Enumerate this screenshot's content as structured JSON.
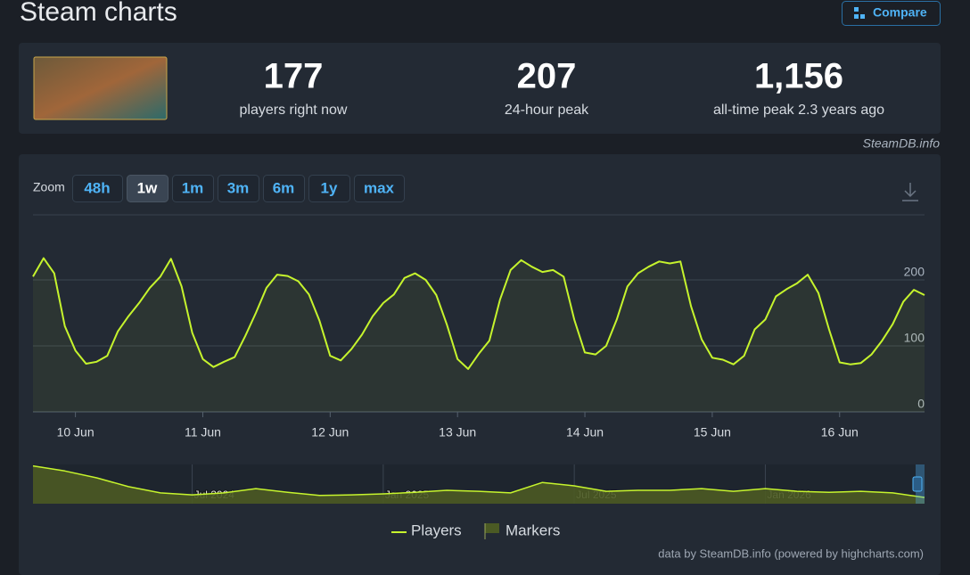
{
  "header": {
    "title": "Steam charts",
    "compare": "Compare"
  },
  "stats": [
    {
      "value": "177",
      "label": "players right now"
    },
    {
      "value": "207",
      "label": "24-hour peak"
    },
    {
      "value": "1,156",
      "label": "all-time peak 2.3 years ago"
    }
  ],
  "credit": "SteamDB.info",
  "zoom": {
    "label": "Zoom",
    "options": [
      "48h",
      "1w",
      "1m",
      "3m",
      "6m",
      "1y",
      "max"
    ],
    "active": 1
  },
  "chart_data": [
    {
      "type": "line",
      "categories": [
        null,
        null,
        null,
        null,
        "10 Jun",
        null,
        null,
        null,
        null,
        null,
        null,
        null,
        null,
        null,
        null,
        null,
        "11 Jun",
        null,
        null,
        null,
        null,
        null,
        null,
        null,
        null,
        null,
        null,
        null,
        "12 Jun",
        null,
        null,
        null,
        null,
        null,
        null,
        null,
        null,
        null,
        null,
        null,
        "13 Jun",
        null,
        null,
        null,
        null,
        null,
        null,
        null,
        null,
        null,
        null,
        null,
        "14 Jun",
        null,
        null,
        null,
        null,
        null,
        null,
        null,
        null,
        null,
        null,
        null,
        "15 Jun",
        null,
        null,
        null,
        null,
        null,
        null,
        null,
        null,
        null,
        null,
        null,
        "16 Jun",
        null,
        null,
        null,
        null,
        null,
        null,
        null,
        null
      ],
      "series": [
        {
          "name": "Players",
          "color": "#c6f42d",
          "values": [
            205,
            233,
            210,
            130,
            93,
            73,
            76,
            85,
            122,
            145,
            165,
            188,
            205,
            232,
            190,
            120,
            80,
            68,
            76,
            83,
            115,
            150,
            188,
            208,
            206,
            198,
            178,
            138,
            85,
            78,
            95,
            117,
            145,
            165,
            178,
            203,
            210,
            200,
            177,
            132,
            80,
            65,
            88,
            108,
            170,
            215,
            230,
            220,
            212,
            215,
            205,
            140,
            90,
            87,
            100,
            140,
            190,
            210,
            220,
            228,
            225,
            228,
            160,
            110,
            82,
            79,
            72,
            85,
            125,
            140,
            175,
            186,
            195,
            208,
            180,
            125,
            75,
            72,
            74,
            87,
            108,
            133,
            167,
            185,
            177
          ]
        }
      ],
      "markers": {
        "name": "Markers",
        "color": "#4b5a24"
      },
      "ylim": [
        0,
        300
      ],
      "yticks": [
        0,
        100,
        200
      ],
      "grid": true,
      "footer": "data by SteamDB.info (powered by highcharts.com)"
    },
    {
      "type": "area",
      "categories": [
        null,
        null,
        null,
        null,
        null,
        "Jul 2024",
        null,
        null,
        null,
        null,
        null,
        "Jan 2025",
        null,
        null,
        null,
        null,
        null,
        "Jul 2025",
        null,
        null,
        null,
        null,
        null,
        "Jan 2026",
        null,
        null,
        null,
        null,
        null
      ],
      "series": [
        {
          "color": "#c6f42d",
          "values": [
            1156,
            1000,
            790,
            520,
            330,
            270,
            330,
            460,
            350,
            250,
            270,
            300,
            350,
            410,
            380,
            330,
            650,
            545,
            380,
            410,
            410,
            460,
            380,
            460,
            380,
            350,
            380,
            330,
            190
          ]
        }
      ],
      "ylim": [
        0,
        1200
      ]
    }
  ]
}
